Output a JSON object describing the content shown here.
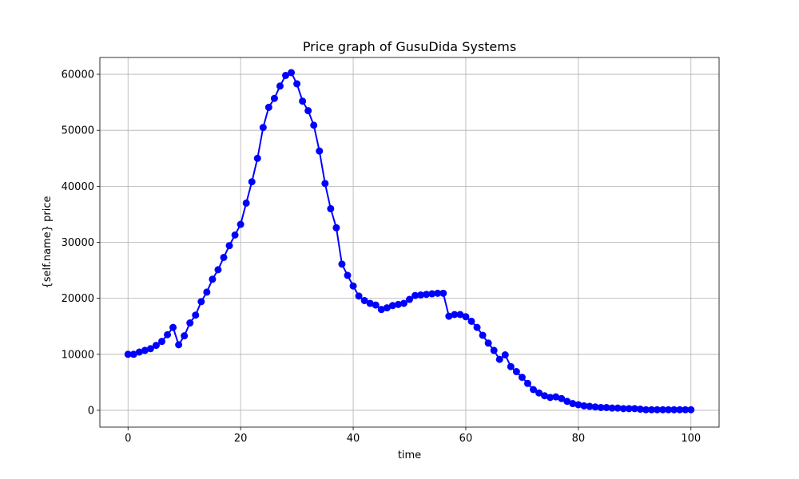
{
  "chart_data": {
    "type": "line",
    "title": "Price graph of GusuDida Systems",
    "xlabel": "time",
    "ylabel": "{self.name} price",
    "xlim": [
      -5,
      105
    ],
    "ylim": [
      -3000,
      63000
    ],
    "xticks": [
      0,
      20,
      40,
      60,
      80,
      100
    ],
    "yticks": [
      0,
      10000,
      20000,
      30000,
      40000,
      50000,
      60000
    ],
    "grid": true,
    "color": "#0000ff",
    "marker": "circle",
    "series": [
      {
        "x": [
          0,
          1,
          2,
          3,
          4,
          5,
          6,
          7,
          8,
          9,
          10,
          11,
          12,
          13,
          14,
          15,
          16,
          17,
          18,
          19,
          20,
          21,
          22,
          23,
          24,
          25,
          26,
          27,
          28,
          29,
          30,
          31,
          32,
          33,
          34,
          35,
          36,
          37,
          38,
          39,
          40,
          41,
          42,
          43,
          44,
          45,
          46,
          47,
          48,
          49,
          50,
          51,
          52,
          53,
          54,
          55,
          56,
          57,
          58,
          59,
          60,
          61,
          62,
          63,
          64,
          65,
          66,
          67,
          68,
          69,
          70,
          71,
          72,
          73,
          74,
          75,
          76,
          77,
          78,
          79,
          80,
          81,
          82,
          83,
          84,
          85,
          86,
          87,
          88,
          89,
          90,
          91,
          92,
          93,
          94,
          95,
          96,
          97,
          98,
          99,
          100
        ],
        "values": [
          10000,
          10000,
          10400,
          10700,
          11000,
          11600,
          12300,
          13500,
          14800,
          11700,
          13300,
          15600,
          17000,
          19400,
          21100,
          23400,
          25100,
          27300,
          29400,
          31300,
          33200,
          37000,
          40800,
          45000,
          50500,
          54100,
          55700,
          57900,
          59800,
          60300,
          58300,
          55200,
          53500,
          50900,
          46300,
          40500,
          36000,
          32600,
          26100,
          24100,
          22200,
          20400,
          19600,
          19100,
          18800,
          18000,
          18300,
          18700,
          18900,
          19100,
          19800,
          20500,
          20600,
          20700,
          20800,
          20900,
          20900,
          16800,
          17100,
          17100,
          16700,
          15900,
          14800,
          13400,
          12000,
          10700,
          9100,
          9900,
          7800,
          6900,
          5900,
          4800,
          3700,
          3100,
          2600,
          2300,
          2400,
          2100,
          1600,
          1200,
          1000,
          800,
          700,
          600,
          500,
          500,
          400,
          400,
          300,
          300,
          300,
          200,
          100,
          100,
          100,
          100,
          100,
          100,
          100,
          100,
          100
        ]
      }
    ]
  }
}
